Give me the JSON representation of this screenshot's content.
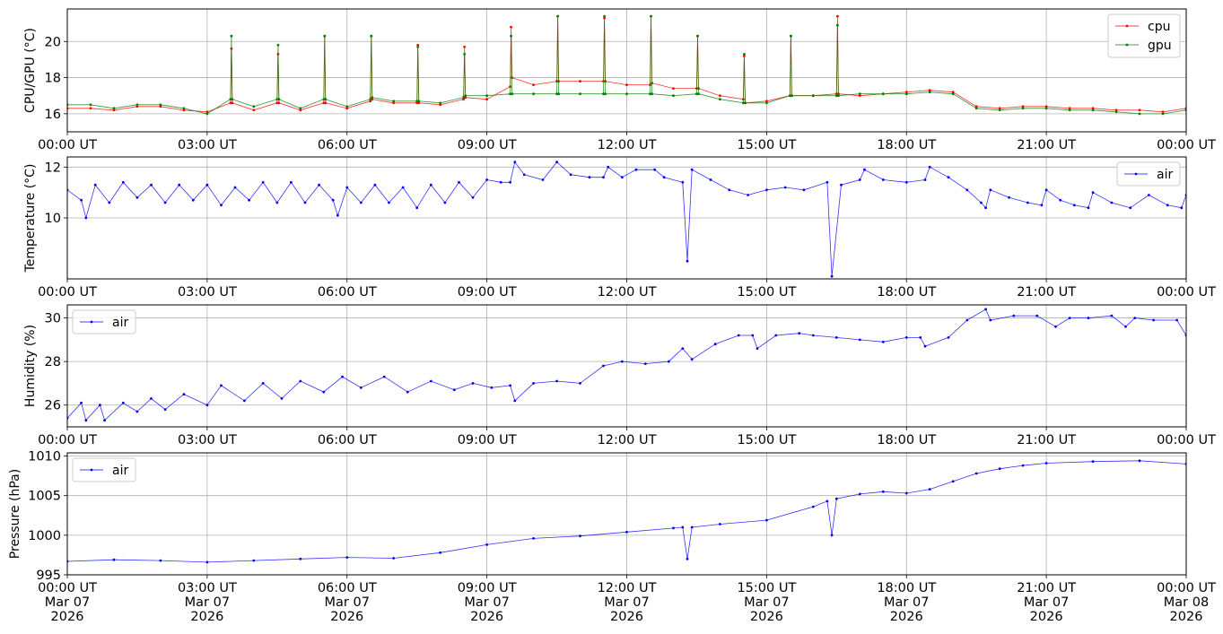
{
  "figure": {
    "panels_count": 4
  },
  "chart_data": [
    {
      "type": "line",
      "panel_id": "cpu-gpu",
      "xlabel": "",
      "ylabel": "CPU/GPU (°C)",
      "xlim": [
        0,
        24
      ],
      "ylim": [
        15.0,
        21.8
      ],
      "yticks": [
        16,
        18,
        20
      ],
      "xtick_labels": [
        "00:00 UT",
        "03:00 UT",
        "06:00 UT",
        "09:00 UT",
        "12:00 UT",
        "15:00 UT",
        "18:00 UT",
        "21:00 UT",
        "00:00 UT"
      ],
      "grid": true,
      "legend": "top-right",
      "series": [
        {
          "name": "cpu",
          "color": "#ff0000",
          "x": [
            0.0,
            0.5,
            1.0,
            1.5,
            2.0,
            2.5,
            3.0,
            3.5,
            3.52,
            3.54,
            4.0,
            4.5,
            4.52,
            4.54,
            5.0,
            5.5,
            5.52,
            5.54,
            6.0,
            6.5,
            6.52,
            6.54,
            7.0,
            7.5,
            7.52,
            7.54,
            8.0,
            8.5,
            8.52,
            8.54,
            9.0,
            9.5,
            9.52,
            9.54,
            10.0,
            10.5,
            10.52,
            10.54,
            11.0,
            11.5,
            11.52,
            11.54,
            12.0,
            12.5,
            12.52,
            12.54,
            13.0,
            13.5,
            13.52,
            13.54,
            14.0,
            14.5,
            14.52,
            14.54,
            15.0,
            15.5,
            15.52,
            15.54,
            16.0,
            16.5,
            16.52,
            16.54,
            17.0,
            17.5,
            18.0,
            18.5,
            19.0,
            19.5,
            20.0,
            20.5,
            21.0,
            21.5,
            22.0,
            22.5,
            23.0,
            23.5,
            24.0
          ],
          "y": [
            16.3,
            16.3,
            16.2,
            16.4,
            16.4,
            16.2,
            16.1,
            16.6,
            19.6,
            16.6,
            16.2,
            16.6,
            19.3,
            16.6,
            16.2,
            16.6,
            20.3,
            16.6,
            16.3,
            16.7,
            20.3,
            16.8,
            16.6,
            16.6,
            19.8,
            16.6,
            16.5,
            16.8,
            19.7,
            16.9,
            16.8,
            17.5,
            20.8,
            18.0,
            17.6,
            17.8,
            21.4,
            17.8,
            17.8,
            17.8,
            21.3,
            17.8,
            17.6,
            17.6,
            21.4,
            17.7,
            17.4,
            17.4,
            20.3,
            17.4,
            17.0,
            16.8,
            19.2,
            16.6,
            16.7,
            17.0,
            20.3,
            17.0,
            17.0,
            17.1,
            21.4,
            17.1,
            17.0,
            17.1,
            17.2,
            17.3,
            17.2,
            16.4,
            16.3,
            16.4,
            16.4,
            16.3,
            16.3,
            16.2,
            16.2,
            16.1,
            16.3
          ]
        },
        {
          "name": "gpu",
          "color": "#008000",
          "x": [
            0.0,
            0.5,
            1.0,
            1.5,
            2.0,
            2.5,
            3.0,
            3.5,
            3.52,
            3.54,
            4.0,
            4.5,
            4.52,
            4.54,
            5.0,
            5.5,
            5.52,
            5.54,
            6.0,
            6.5,
            6.52,
            6.54,
            7.0,
            7.5,
            7.52,
            7.54,
            8.0,
            8.5,
            8.52,
            8.54,
            9.0,
            9.5,
            9.52,
            9.54,
            10.0,
            10.5,
            10.52,
            10.54,
            11.0,
            11.5,
            11.52,
            11.54,
            12.0,
            12.5,
            12.52,
            12.54,
            13.0,
            13.5,
            13.52,
            13.54,
            14.0,
            14.5,
            14.52,
            14.54,
            15.0,
            15.5,
            15.52,
            15.54,
            16.0,
            16.5,
            16.52,
            16.54,
            17.0,
            17.5,
            18.0,
            18.5,
            19.0,
            19.5,
            20.0,
            20.5,
            21.0,
            21.5,
            22.0,
            22.5,
            23.0,
            23.5,
            24.0
          ],
          "y": [
            16.5,
            16.5,
            16.3,
            16.5,
            16.5,
            16.3,
            16.0,
            16.8,
            20.3,
            16.8,
            16.4,
            16.8,
            19.8,
            16.8,
            16.3,
            16.8,
            20.3,
            16.8,
            16.4,
            16.8,
            20.3,
            16.9,
            16.7,
            16.7,
            19.7,
            16.7,
            16.6,
            16.9,
            19.3,
            17.0,
            17.0,
            17.1,
            20.3,
            17.1,
            17.1,
            17.1,
            21.4,
            17.1,
            17.1,
            17.1,
            21.4,
            17.1,
            17.1,
            17.1,
            21.4,
            17.1,
            17.0,
            17.1,
            20.3,
            17.1,
            16.8,
            16.6,
            19.3,
            16.6,
            16.6,
            17.0,
            20.3,
            17.0,
            17.0,
            17.0,
            20.9,
            17.0,
            17.1,
            17.1,
            17.1,
            17.2,
            17.1,
            16.3,
            16.2,
            16.3,
            16.3,
            16.2,
            16.2,
            16.1,
            16.0,
            16.0,
            16.2
          ]
        }
      ]
    },
    {
      "type": "line",
      "panel_id": "temperature",
      "xlabel": "",
      "ylabel": "Temperature (°C)",
      "xlim": [
        0,
        24
      ],
      "ylim": [
        7.6,
        12.4
      ],
      "yticks": [
        10,
        12
      ],
      "xtick_labels": [
        "00:00 UT",
        "03:00 UT",
        "06:00 UT",
        "09:00 UT",
        "12:00 UT",
        "15:00 UT",
        "18:00 UT",
        "21:00 UT",
        "00:00 UT"
      ],
      "grid": true,
      "legend": "top-right",
      "series": [
        {
          "name": "air",
          "color": "#0000ff",
          "x": [
            0.0,
            0.3,
            0.4,
            0.6,
            0.9,
            1.2,
            1.5,
            1.8,
            2.1,
            2.4,
            2.7,
            3.0,
            3.3,
            3.6,
            3.9,
            4.2,
            4.5,
            4.8,
            5.1,
            5.4,
            5.7,
            5.8,
            6.0,
            6.3,
            6.6,
            6.9,
            7.2,
            7.5,
            7.8,
            8.1,
            8.4,
            8.7,
            9.0,
            9.3,
            9.5,
            9.6,
            9.8,
            10.2,
            10.5,
            10.8,
            11.2,
            11.5,
            11.6,
            11.9,
            12.2,
            12.6,
            12.8,
            13.2,
            13.3,
            13.4,
            13.8,
            14.2,
            14.6,
            15.0,
            15.4,
            15.8,
            16.3,
            16.4,
            16.6,
            17.0,
            17.1,
            17.5,
            18.0,
            18.4,
            18.5,
            18.9,
            19.3,
            19.6,
            19.7,
            19.8,
            20.2,
            20.6,
            20.9,
            21.0,
            21.3,
            21.6,
            21.9,
            22.0,
            22.4,
            22.8,
            23.2,
            23.6,
            23.9,
            24.0
          ],
          "y": [
            11.1,
            10.7,
            10.0,
            11.3,
            10.6,
            11.4,
            10.8,
            11.3,
            10.6,
            11.3,
            10.7,
            11.3,
            10.5,
            11.2,
            10.7,
            11.4,
            10.6,
            11.4,
            10.6,
            11.3,
            10.7,
            10.1,
            11.2,
            10.6,
            11.3,
            10.6,
            11.2,
            10.4,
            11.3,
            10.6,
            11.4,
            10.8,
            11.5,
            11.4,
            11.4,
            12.2,
            11.7,
            11.5,
            12.2,
            11.7,
            11.6,
            11.6,
            12.0,
            11.6,
            11.9,
            11.9,
            11.6,
            11.4,
            8.3,
            11.9,
            11.5,
            11.1,
            10.9,
            11.1,
            11.2,
            11.1,
            11.4,
            7.7,
            11.3,
            11.5,
            11.9,
            11.5,
            11.4,
            11.5,
            12.0,
            11.6,
            11.1,
            10.6,
            10.4,
            11.1,
            10.8,
            10.6,
            10.5,
            11.1,
            10.7,
            10.5,
            10.4,
            11.0,
            10.6,
            10.4,
            10.9,
            10.5,
            10.4,
            10.9
          ]
        }
      ]
    },
    {
      "type": "line",
      "panel_id": "humidity",
      "xlabel": "",
      "ylabel": "Humidity (%)",
      "xlim": [
        0,
        24
      ],
      "ylim": [
        25.0,
        30.6
      ],
      "yticks": [
        26,
        28,
        30
      ],
      "xtick_labels": [
        "00:00 UT",
        "03:00 UT",
        "06:00 UT",
        "09:00 UT",
        "12:00 UT",
        "15:00 UT",
        "18:00 UT",
        "21:00 UT",
        "00:00 UT"
      ],
      "grid": true,
      "legend": "top-left",
      "series": [
        {
          "name": "air",
          "color": "#0000ff",
          "x": [
            0.0,
            0.3,
            0.4,
            0.7,
            0.8,
            1.2,
            1.5,
            1.8,
            2.1,
            2.5,
            3.0,
            3.3,
            3.8,
            4.2,
            4.6,
            5.0,
            5.5,
            5.9,
            6.3,
            6.8,
            7.3,
            7.8,
            8.3,
            8.7,
            9.1,
            9.5,
            9.6,
            10.0,
            10.5,
            11.0,
            11.5,
            11.9,
            12.4,
            12.9,
            13.2,
            13.4,
            13.9,
            14.4,
            14.7,
            14.8,
            15.2,
            15.7,
            16.0,
            16.5,
            17.0,
            17.5,
            18.0,
            18.3,
            18.4,
            18.9,
            19.3,
            19.7,
            19.8,
            20.3,
            20.8,
            21.2,
            21.5,
            21.9,
            22.4,
            22.7,
            22.9,
            23.3,
            23.8,
            24.0
          ],
          "y": [
            25.4,
            26.1,
            25.3,
            26.0,
            25.3,
            26.1,
            25.7,
            26.3,
            25.8,
            26.5,
            26.0,
            26.9,
            26.2,
            27.0,
            26.3,
            27.1,
            26.6,
            27.3,
            26.8,
            27.3,
            26.6,
            27.1,
            26.7,
            27.0,
            26.8,
            26.9,
            26.2,
            27.0,
            27.1,
            27.0,
            27.8,
            28.0,
            27.9,
            28.0,
            28.6,
            28.1,
            28.8,
            29.2,
            29.2,
            28.6,
            29.2,
            29.3,
            29.2,
            29.1,
            29.0,
            28.9,
            29.1,
            29.1,
            28.7,
            29.1,
            29.9,
            30.4,
            29.9,
            30.1,
            30.1,
            29.6,
            30.0,
            30.0,
            30.1,
            29.6,
            30.0,
            29.9,
            29.9,
            29.2
          ]
        }
      ]
    },
    {
      "type": "line",
      "panel_id": "pressure",
      "xlabel": "",
      "ylabel": "Pressure (hPa)",
      "xlim": [
        0,
        24
      ],
      "ylim": [
        995,
        1010.4
      ],
      "yticks": [
        995,
        1000,
        1005,
        1010
      ],
      "xtick_labels": [
        "00:00 UT",
        "03:00 UT",
        "06:00 UT",
        "09:00 UT",
        "12:00 UT",
        "15:00 UT",
        "18:00 UT",
        "21:00 UT",
        "00:00 UT"
      ],
      "xtick_sublabels": [
        "Mar 07",
        "Mar 07",
        "Mar 07",
        "Mar 07",
        "Mar 07",
        "Mar 07",
        "Mar 07",
        "Mar 07",
        "Mar 08"
      ],
      "xtick_years": [
        "2026",
        "2026",
        "2026",
        "2026",
        "2026",
        "2026",
        "2026",
        "2026",
        "2026"
      ],
      "grid": true,
      "legend": "top-left",
      "series": [
        {
          "name": "air",
          "color": "#0000ff",
          "x": [
            0.0,
            1.0,
            2.0,
            3.0,
            4.0,
            5.0,
            6.0,
            7.0,
            8.0,
            9.0,
            10.0,
            11.0,
            12.0,
            13.0,
            13.2,
            13.3,
            13.4,
            14.0,
            15.0,
            16.0,
            16.3,
            16.4,
            16.5,
            17.0,
            17.5,
            18.0,
            18.5,
            19.0,
            19.5,
            20.0,
            20.5,
            21.0,
            22.0,
            23.0,
            24.0
          ],
          "y": [
            996.7,
            996.9,
            996.8,
            996.6,
            996.8,
            997.0,
            997.2,
            997.1,
            997.8,
            998.8,
            999.6,
            999.9,
            1000.4,
            1000.9,
            1001.0,
            997.0,
            1001.0,
            1001.4,
            1001.9,
            1003.6,
            1004.3,
            1000.0,
            1004.6,
            1005.2,
            1005.5,
            1005.3,
            1005.8,
            1006.8,
            1007.8,
            1008.4,
            1008.8,
            1009.1,
            1009.3,
            1009.4,
            1009.0
          ]
        }
      ]
    }
  ]
}
